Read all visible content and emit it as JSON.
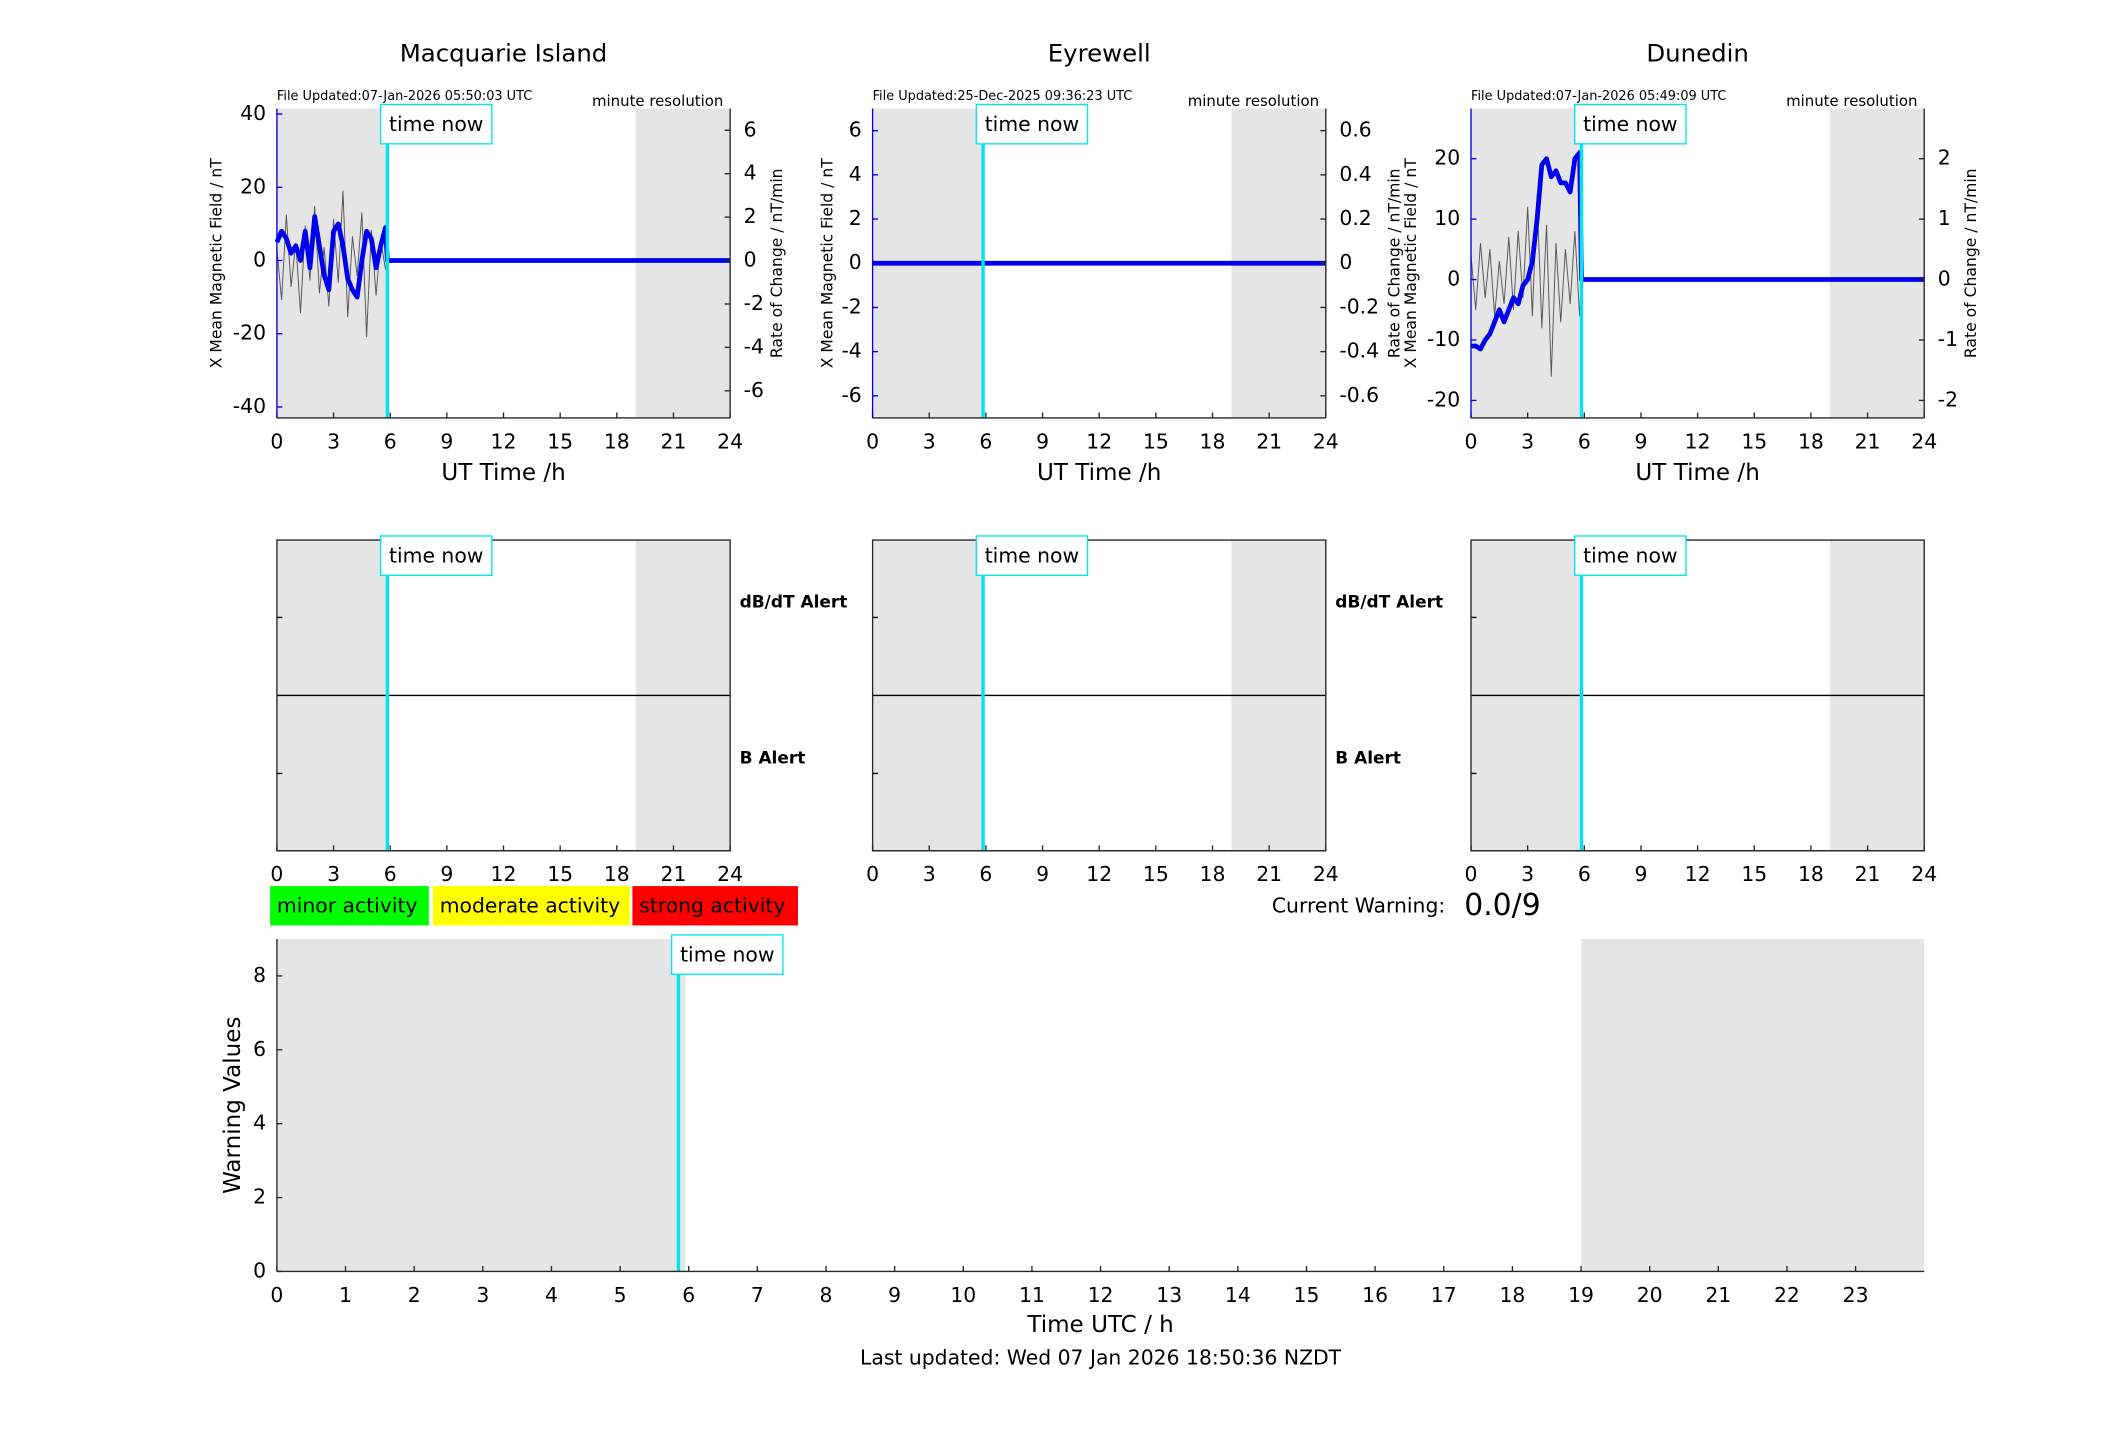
{
  "chart_data": [
    {
      "type": "line",
      "title": "Macquarie Island",
      "file_updated": "File Updated:07-Jan-2026 05:50:03 UTC",
      "resolution": "minute resolution",
      "xlabel": "UT Time /h",
      "ylabel": "X Mean Magnetic Field / nT",
      "y2label": "Rate of Change / nT/min",
      "xlim": [
        0,
        24
      ],
      "xticks": [
        0,
        3,
        6,
        9,
        12,
        15,
        18,
        21,
        24
      ],
      "ylim": [
        -43,
        41.5
      ],
      "yticks": [
        -40,
        -20,
        0,
        20,
        40
      ],
      "y2lim": [
        -7.25,
        7
      ],
      "y2ticks": [
        -6,
        -4,
        -2,
        0,
        2,
        4,
        6
      ],
      "shaded": [
        [
          0,
          5.85
        ],
        [
          19,
          24
        ]
      ],
      "shade_color": "#e5e5e5",
      "time_now": 5.85,
      "time_now_label": "time now",
      "time_now_color": "#00e5ee",
      "series": [
        {
          "color": "#555555",
          "axis": "y2",
          "x": [
            0,
            0.25,
            0.5,
            0.75,
            1,
            1.25,
            1.5,
            1.75,
            2,
            2.25,
            2.5,
            2.75,
            3,
            3.25,
            3.5,
            3.75,
            4,
            4.25,
            4.5,
            4.75,
            5,
            5.25,
            5.5,
            5.75,
            5.85,
            24
          ],
          "values": [
            0.5,
            -1.8,
            2.1,
            -1.2,
            0.8,
            -2.4,
            1.6,
            -0.9,
            2.5,
            -1.5,
            0.6,
            -2.1,
            1.9,
            -1,
            3.2,
            -2.6,
            1.1,
            -0.7,
            2.2,
            -3.5,
            1.4,
            -1.6,
            0.9,
            -0.4,
            0,
            0
          ]
        },
        {
          "color": "#0000ee",
          "x": [
            0,
            0.25,
            0.5,
            0.75,
            1,
            1.25,
            1.5,
            1.75,
            2,
            2.25,
            2.5,
            2.75,
            3,
            3.25,
            3.5,
            3.75,
            4,
            4.25,
            4.5,
            4.75,
            5,
            5.25,
            5.5,
            5.75,
            5.85,
            24
          ],
          "values": [
            5,
            8,
            6,
            2,
            4,
            0,
            8,
            -2,
            12,
            4,
            -4,
            -8,
            8,
            10,
            4,
            -5,
            -8,
            -10,
            0,
            8,
            6,
            -2,
            4,
            9,
            0,
            0
          ]
        }
      ]
    },
    {
      "type": "line",
      "title": "Eyrewell",
      "file_updated": "File Updated:25-Dec-2025 09:36:23 UTC",
      "resolution": "minute resolution",
      "xlabel": "UT Time /h",
      "ylabel": "X Mean Magnetic Field / nT",
      "y2label": "Rate of Change / nT/min",
      "xlim": [
        0,
        24
      ],
      "xticks": [
        0,
        3,
        6,
        9,
        12,
        15,
        18,
        21,
        24
      ],
      "ylim": [
        -7,
        7
      ],
      "yticks": [
        -6,
        -4,
        -2,
        0,
        2,
        4,
        6
      ],
      "y2lim": [
        -0.7,
        0.7
      ],
      "y2ticks": [
        -0.6,
        -0.4,
        -0.2,
        0,
        0.2,
        0.4,
        0.6
      ],
      "shaded": [
        [
          0,
          5.85
        ],
        [
          19,
          24
        ]
      ],
      "shade_color": "#e5e5e5",
      "time_now": 5.85,
      "time_now_label": "time now",
      "time_now_color": "#00e5ee",
      "series": [
        {
          "color": "#555555",
          "axis": "y2",
          "x": [
            0,
            24
          ],
          "values": [
            0,
            0
          ]
        },
        {
          "color": "#0000ee",
          "x": [
            0,
            24
          ],
          "values": [
            0,
            0
          ]
        }
      ]
    },
    {
      "type": "line",
      "title": "Dunedin",
      "file_updated": "File Updated:07-Jan-2026 05:49:09 UTC",
      "resolution": "minute resolution",
      "xlabel": "UT Time /h",
      "ylabel": "X Mean Magnetic Field / nT",
      "y2label": "Rate of Change / nT/min",
      "xlim": [
        0,
        24
      ],
      "xticks": [
        0,
        3,
        6,
        9,
        12,
        15,
        18,
        21,
        24
      ],
      "ylim": [
        -22.9,
        28.3
      ],
      "yticks": [
        -20,
        -10,
        0,
        10,
        20
      ],
      "y2lim": [
        -2.29,
        2.83
      ],
      "y2ticks": [
        -2,
        -1,
        0,
        1,
        2
      ],
      "shaded": [
        [
          0,
          5.85
        ],
        [
          19,
          24
        ]
      ],
      "shade_color": "#e5e5e5",
      "time_now": 5.85,
      "time_now_label": "time now",
      "time_now_color": "#00e5ee",
      "series": [
        {
          "color": "#555555",
          "axis": "y2",
          "x": [
            0,
            0.25,
            0.5,
            0.75,
            1,
            1.25,
            1.5,
            1.75,
            2,
            2.25,
            2.5,
            2.75,
            3,
            3.25,
            3.5,
            3.75,
            4,
            4.25,
            4.5,
            4.75,
            5,
            5.25,
            5.5,
            5.75,
            5.85,
            24
          ],
          "values": [
            0.4,
            -0.5,
            0.6,
            -0.3,
            0.5,
            -0.6,
            0.3,
            -0.4,
            0.7,
            -0.5,
            0.8,
            -0.3,
            1.2,
            -0.6,
            1.4,
            -0.8,
            0.9,
            -1.6,
            0.6,
            -0.7,
            0.5,
            -0.4,
            0.8,
            -0.6,
            0,
            0
          ]
        },
        {
          "color": "#0000ee",
          "x": [
            0,
            0.25,
            0.5,
            0.75,
            1,
            1.25,
            1.5,
            1.75,
            2,
            2.25,
            2.5,
            2.75,
            3,
            3.25,
            3.5,
            3.75,
            4,
            4.25,
            4.5,
            4.75,
            5,
            5.25,
            5.5,
            5.75,
            5.85,
            24
          ],
          "values": [
            -11,
            -11,
            -11.5,
            -10,
            -9,
            -7,
            -5,
            -7,
            -5,
            -3,
            -4,
            -1,
            0,
            3,
            10,
            19,
            20,
            17,
            18,
            16,
            16,
            14.5,
            20,
            21,
            0,
            0
          ]
        }
      ]
    },
    {
      "type": "alert",
      "xlim": [
        0,
        24
      ],
      "xticks": [
        0,
        3,
        6,
        9,
        12,
        15,
        18,
        21,
        24
      ],
      "shaded": [
        [
          0,
          5.85
        ],
        [
          19,
          24
        ]
      ],
      "shade_color": "#e5e5e5",
      "time_now": 5.85,
      "time_now_label": "time now",
      "time_now_color": "#00e5ee",
      "alert_labels": [
        {
          "label": "dB/dT Alert",
          "color": "#000000"
        },
        {
          "label": "B Alert",
          "color": "#0000ee"
        }
      ]
    },
    {
      "type": "alert",
      "xlim": [
        0,
        24
      ],
      "xticks": [
        0,
        3,
        6,
        9,
        12,
        15,
        18,
        21,
        24
      ],
      "shaded": [
        [
          0,
          5.85
        ],
        [
          19,
          24
        ]
      ],
      "shade_color": "#e5e5e5",
      "time_now": 5.85,
      "time_now_label": "time now",
      "time_now_color": "#00e5ee",
      "alert_labels": [
        {
          "label": "dB/dT Alert",
          "color": "#000000"
        },
        {
          "label": "B Alert",
          "color": "#0000ee"
        }
      ]
    },
    {
      "type": "alert",
      "xlim": [
        0,
        24
      ],
      "xticks": [
        0,
        3,
        6,
        9,
        12,
        15,
        18,
        21,
        24
      ],
      "shaded": [
        [
          0,
          5.85
        ],
        [
          19,
          24
        ]
      ],
      "shade_color": "#e5e5e5",
      "time_now": 5.85,
      "time_now_label": "time now",
      "time_now_color": "#00e5ee",
      "alert_labels": []
    },
    {
      "type": "warning",
      "xlabel": "Time UTC / h",
      "ylabel": "Warning Values",
      "xlim": [
        0,
        24
      ],
      "xticks": [
        0,
        1,
        2,
        3,
        4,
        5,
        6,
        7,
        8,
        9,
        10,
        11,
        12,
        13,
        14,
        15,
        16,
        17,
        18,
        19,
        20,
        21,
        22,
        23
      ],
      "ylim": [
        0,
        9
      ],
      "yticks": [
        0,
        2,
        4,
        6,
        8
      ],
      "shaded": [
        [
          0,
          5.95
        ],
        [
          19,
          24
        ]
      ],
      "shade_color": "#e5e5e5",
      "time_now": 5.85,
      "time_now_label": "time now",
      "time_now_color": "#00e5ee",
      "activity_levels": [
        {
          "label": "minor activity",
          "color": "#00ff00"
        },
        {
          "label": "moderate activity",
          "color": "#ffff00"
        },
        {
          "label": "strong activity",
          "color": "#ff0000"
        }
      ],
      "current_warning_label": "Current Warning:",
      "current_warning": "0.0/9",
      "last_updated": "Last updated: Wed 07 Jan 2026 18:50:36 NZDT"
    }
  ]
}
